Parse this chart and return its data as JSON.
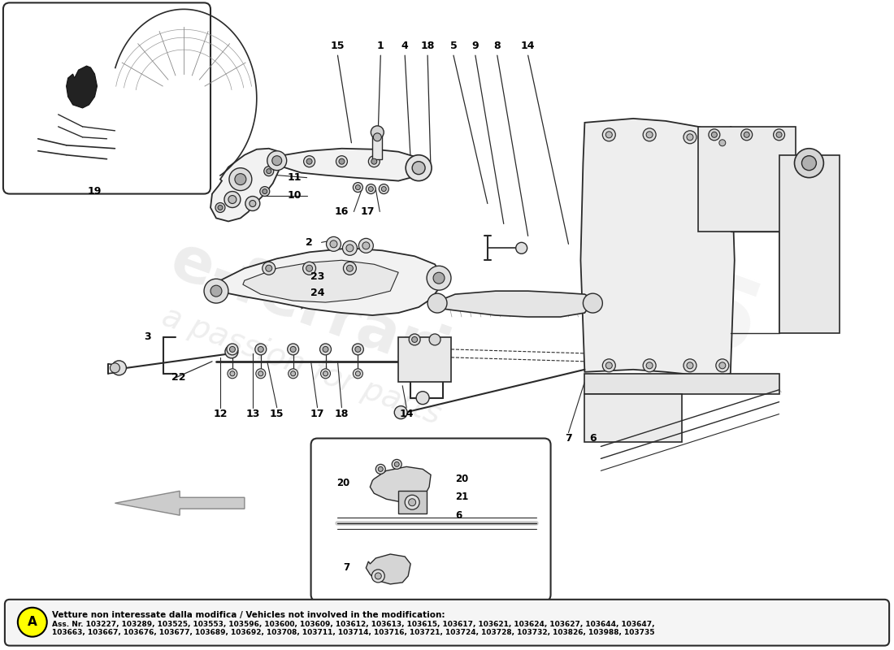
{
  "bg_color": "#ffffff",
  "fig_width": 11.0,
  "fig_height": 8.0,
  "dpi": 100,
  "footer_circle_color": "#ffff00",
  "footer_circle_text": "A",
  "footer_title": "Vetture non interessate dalla modifica / Vehicles not involved in the modification:",
  "footer_line1": "Ass. Nr. 103227, 103289, 103525, 103553, 103596, 103600, 103609, 103612, 103613, 103615, 103617, 103621, 103624, 103627, 103644, 103647,",
  "footer_line2": "103663, 103667, 103676, 103677, 103689, 103692, 103708, 103711, 103714, 103716, 103721, 103724, 103728, 103732, 103826, 103988, 103735",
  "line_color": "#2a2a2a",
  "fill_light": "#f2f2f2",
  "fill_white": "#ffffff"
}
